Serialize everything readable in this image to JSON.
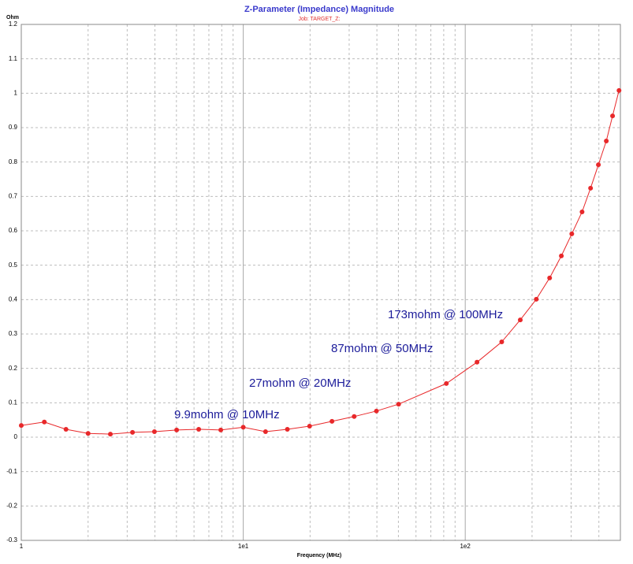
{
  "chart_data": {
    "type": "line",
    "title": "Z-Parameter (Impedance) Magnitude",
    "subtitle": "Job: TARGET_Z:",
    "x_label": "Frequency (MHz)",
    "y_label": "Ohm",
    "x": [
      1,
      1.27,
      1.59,
      2.0,
      2.52,
      3.17,
      3.98,
      5.01,
      6.3,
      7.92,
      10,
      12.6,
      15.8,
      19.9,
      25.1,
      31.6,
      39.8,
      50.1,
      82.2,
      113,
      146,
      177,
      209,
      240,
      271,
      302,
      336,
      367,
      398,
      432,
      461,
      493
    ],
    "series": [
      {
        "name": "Z",
        "color": "#e8282a",
        "values": [
          0.034,
          0.044,
          0.023,
          0.011,
          0.009,
          0.014,
          0.016,
          0.021,
          0.023,
          0.021,
          0.029,
          0.016,
          0.023,
          0.032,
          0.046,
          0.06,
          0.076,
          0.096,
          0.156,
          0.218,
          0.277,
          0.341,
          0.401,
          0.463,
          0.527,
          0.591,
          0.655,
          0.724,
          0.792,
          0.861,
          0.934,
          1.008
        ]
      }
    ],
    "xlim": [
      1,
      500
    ],
    "ylim": [
      -0.3,
      1.2
    ],
    "xscale": "log",
    "xticks": [
      {
        "value": 1,
        "label": "1"
      },
      {
        "value": 10,
        "label": "1e1"
      },
      {
        "value": 100,
        "label": "1e2"
      }
    ],
    "yticks": [
      -0.3,
      -0.2,
      -0.1,
      0,
      0.1,
      0.2,
      0.3,
      0.4,
      0.5,
      0.6,
      0.7,
      0.8,
      0.9,
      1,
      1.1,
      1.2
    ],
    "grid": true,
    "annotations": [
      "9.9mohm @ 10MHz",
      "27mohm @ 20MHz",
      "87mohm @ 50MHz",
      "173mohm @ 100MHz"
    ]
  }
}
